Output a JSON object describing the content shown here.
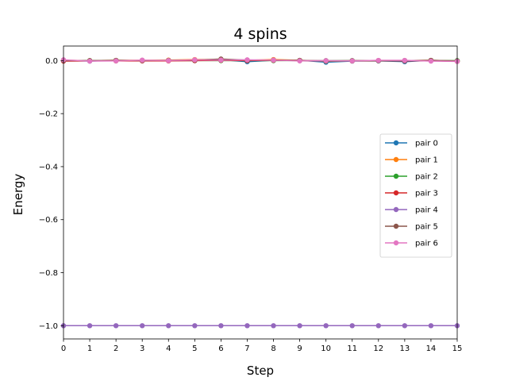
{
  "chart_data": {
    "type": "line",
    "title": "4 spins",
    "xlabel": "Step",
    "ylabel": "Energy",
    "xlim": [
      0,
      15
    ],
    "ylim": [
      -1.05,
      0.055
    ],
    "grid": false,
    "legend_position": "center-right",
    "x": [
      0,
      1,
      2,
      3,
      4,
      5,
      6,
      7,
      8,
      9,
      10,
      11,
      12,
      13,
      14,
      15
    ],
    "x_ticks": [
      "0",
      "1",
      "2",
      "3",
      "4",
      "5",
      "6",
      "7",
      "8",
      "9",
      "10",
      "11",
      "12",
      "13",
      "14",
      "15"
    ],
    "y_ticks": [
      {
        "value": 0.0,
        "label": "0.0"
      },
      {
        "value": -0.2,
        "label": "−0.2"
      },
      {
        "value": -0.4,
        "label": "−0.4"
      },
      {
        "value": -0.6,
        "label": "−0.6"
      },
      {
        "value": -0.8,
        "label": "−0.8"
      },
      {
        "value": -1.0,
        "label": "−1.0"
      }
    ],
    "series": [
      {
        "name": "pair 0",
        "color": "#1f77b4",
        "values": [
          0.0,
          -0.002,
          0.001,
          0.0,
          0.001,
          0.0,
          0.003,
          -0.004,
          0.001,
          0.001,
          -0.006,
          -0.002,
          -0.001,
          -0.004,
          0.001,
          -0.002
        ]
      },
      {
        "name": "pair 1",
        "color": "#ff7f0e",
        "values": [
          0.001,
          0.0,
          0.001,
          0.001,
          0.002,
          0.004,
          0.004,
          0.001,
          0.004,
          0.001,
          -0.002,
          -0.001,
          0.0,
          0.0,
          0.001,
          -0.001
        ]
      },
      {
        "name": "pair 2",
        "color": "#2ca02c",
        "values": [
          0.0,
          0.0,
          0.0,
          0.0,
          0.0,
          0.0,
          0.0,
          0.0,
          0.0,
          0.0,
          0.0,
          0.0,
          0.0,
          0.0,
          0.0,
          0.0
        ]
      },
      {
        "name": "pair 3",
        "color": "#d62728",
        "values": [
          -0.002,
          -0.001,
          -0.001,
          -0.001,
          -0.001,
          0.0,
          0.001,
          0.0,
          0.001,
          0.0,
          -0.001,
          -0.001,
          0.0,
          -0.001,
          0.0,
          -0.003
        ]
      },
      {
        "name": "pair 4",
        "color": "#9467bd",
        "values": [
          -1.0,
          -1.0,
          -1.0,
          -1.0,
          -1.0,
          -1.0,
          -1.0,
          -1.0,
          -1.0,
          -1.0,
          -1.0,
          -1.0,
          -1.0,
          -1.0,
          -1.0,
          -1.0
        ]
      },
      {
        "name": "pair 5",
        "color": "#8c564b",
        "values": [
          0.0,
          0.0,
          0.001,
          0.0,
          0.001,
          0.002,
          0.006,
          0.002,
          0.002,
          0.001,
          -0.001,
          0.0,
          0.0,
          0.0,
          0.001,
          -0.001
        ]
      },
      {
        "name": "pair 6",
        "color": "#e377c2",
        "values": [
          0.003,
          -0.002,
          -0.001,
          0.002,
          0.0,
          0.003,
          0.002,
          0.003,
          0.002,
          -0.001,
          0.0,
          -0.001,
          0.001,
          0.001,
          -0.002,
          -0.003
        ]
      }
    ]
  }
}
